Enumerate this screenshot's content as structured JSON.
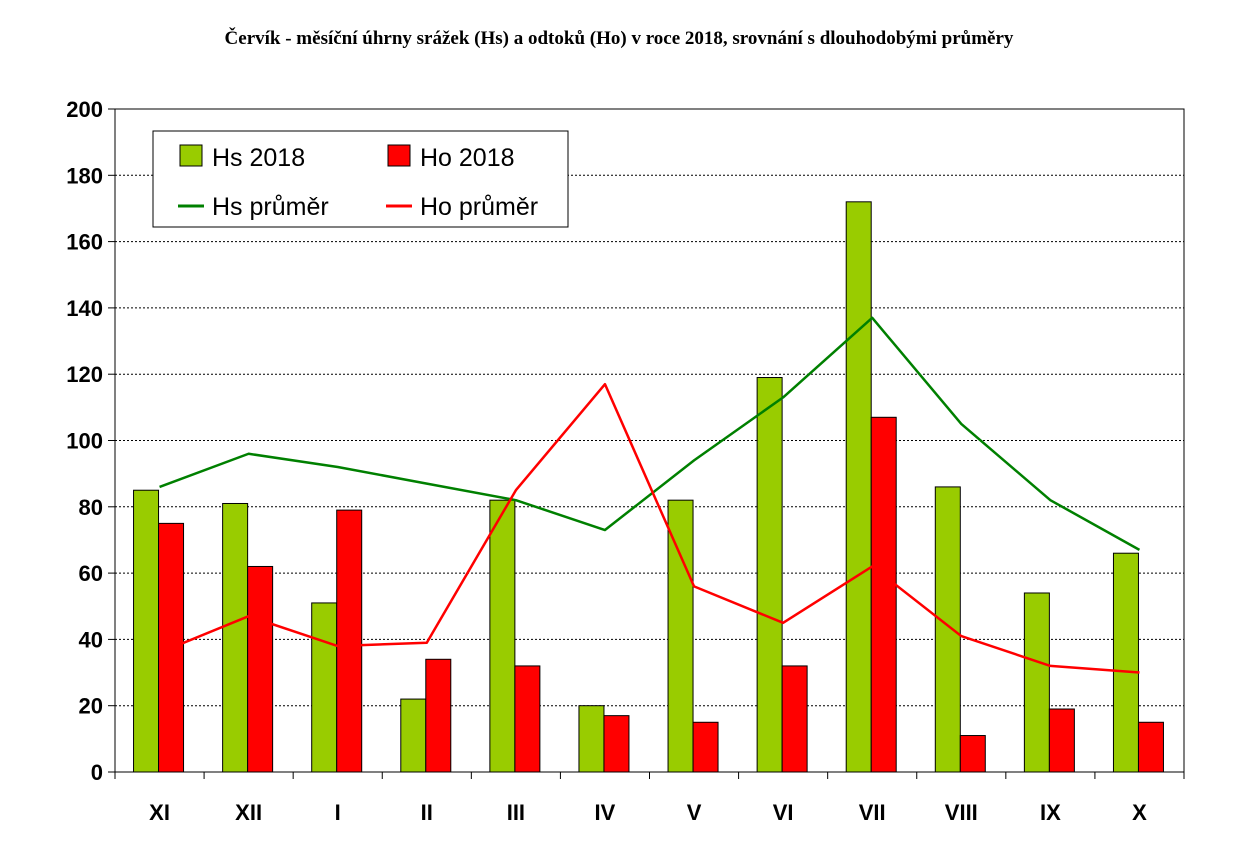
{
  "chart_data": {
    "type": "bar",
    "title": "Červík - měsíční úhrny srážek (Hs) a odtoků (Ho) v roce 2018, srovnání s dlouhodobými průměry",
    "xlabel": "",
    "ylabel": "",
    "ylim": [
      0,
      200
    ],
    "yticks": [
      0,
      20,
      40,
      60,
      80,
      100,
      120,
      140,
      160,
      180,
      200
    ],
    "grid": true,
    "legend_position": "top-left",
    "categories": [
      "XI",
      "XII",
      "I",
      "II",
      "III",
      "IV",
      "V",
      "VI",
      "VII",
      "VIII",
      "IX",
      "X"
    ],
    "series": [
      {
        "name": "Hs 2018",
        "kind": "bar",
        "color": "#99cc00",
        "values": [
          85,
          81,
          51,
          22,
          82,
          20,
          82,
          119,
          172,
          86,
          54,
          66
        ]
      },
      {
        "name": "Ho 2018",
        "kind": "bar",
        "color": "#ff0000",
        "values": [
          75,
          62,
          79,
          34,
          32,
          17,
          15,
          32,
          107,
          11,
          19,
          15
        ]
      },
      {
        "name": "Hs průměr",
        "kind": "line",
        "color": "#008000",
        "values": [
          86,
          96,
          92,
          87,
          82,
          73,
          94,
          113,
          137,
          105,
          82,
          67
        ]
      },
      {
        "name": "Ho průměr",
        "kind": "line",
        "color": "#ff0000",
        "values": [
          36,
          47,
          38,
          39,
          85,
          117,
          56,
          45,
          62,
          41,
          32,
          30
        ]
      }
    ]
  }
}
